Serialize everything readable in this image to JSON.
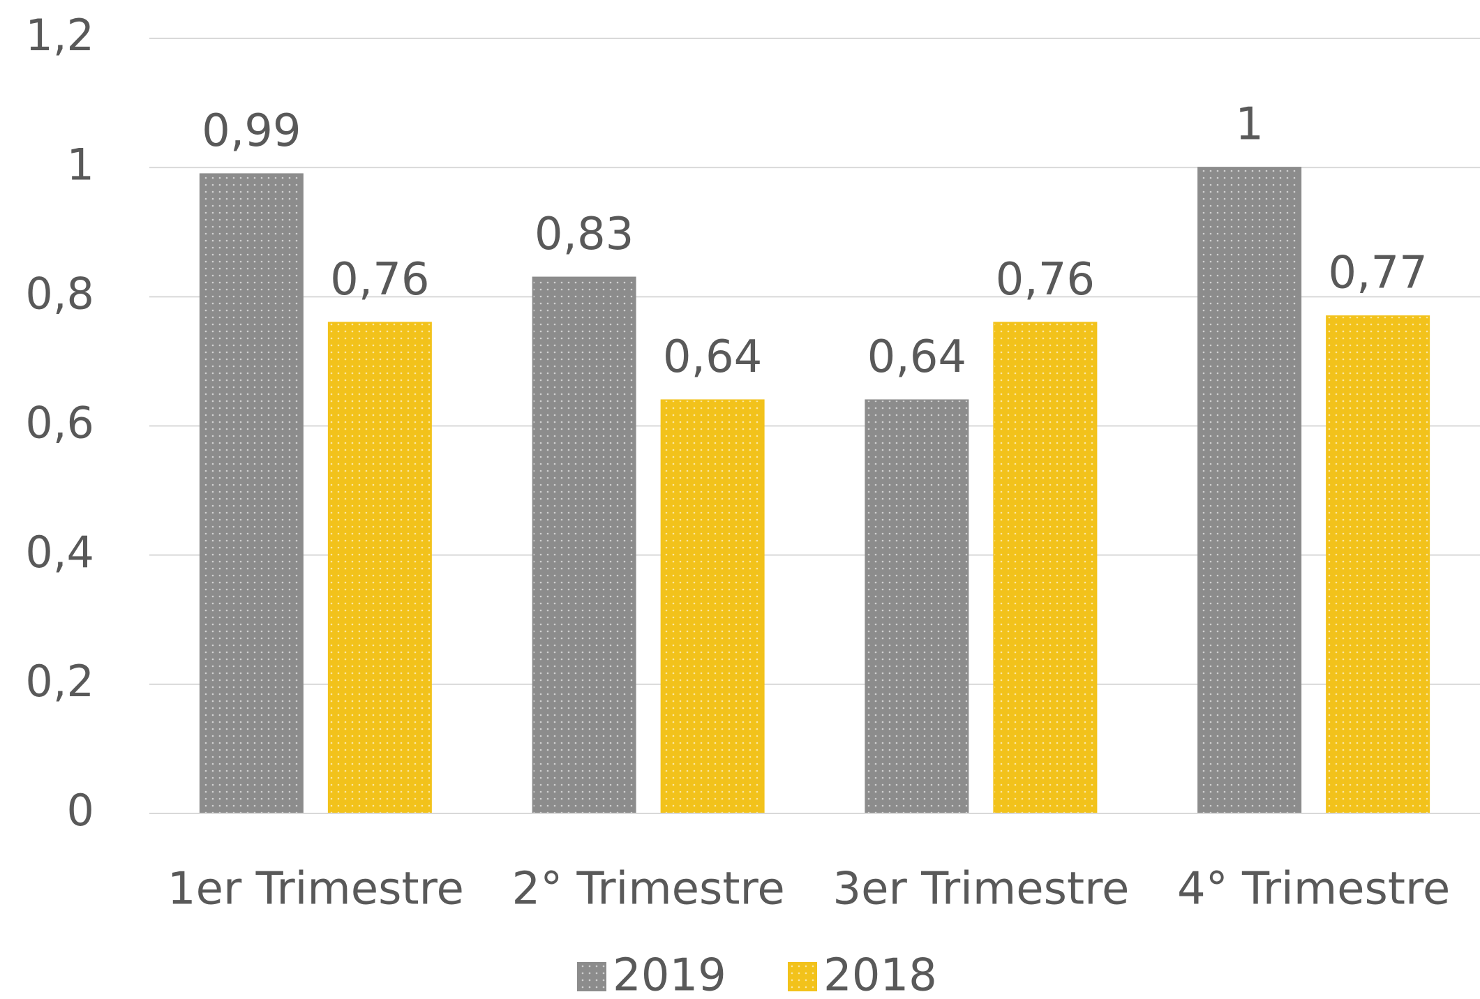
{
  "chart_data": {
    "type": "bar",
    "categories": [
      "1er Trimestre",
      "2° Trimestre",
      "3er Trimestre",
      "4° Trimestre"
    ],
    "series": [
      {
        "name": "2019",
        "color": "#8c8c8c",
        "values": [
          0.99,
          0.83,
          0.64,
          1
        ],
        "value_labels": [
          "0,99",
          "0,83",
          "0,64",
          "1"
        ]
      },
      {
        "name": "2018",
        "color": "#f2c21b",
        "values": [
          0.76,
          0.64,
          0.76,
          0.77
        ],
        "value_labels": [
          "0,76",
          "0,64",
          "0,76",
          "0,77"
        ]
      }
    ],
    "ylim": [
      0,
      1.2
    ],
    "yticks": [
      0,
      {
        "value": 0.2,
        "label": "0,2"
      },
      {
        "value": 0.4,
        "label": "0,4"
      },
      {
        "value": 0.6,
        "label": "0,6"
      },
      {
        "value": 0.8,
        "label": "0,8"
      },
      1,
      {
        "value": 1.2,
        "label": "1,2"
      }
    ],
    "grid": true,
    "legend": "bottom"
  }
}
